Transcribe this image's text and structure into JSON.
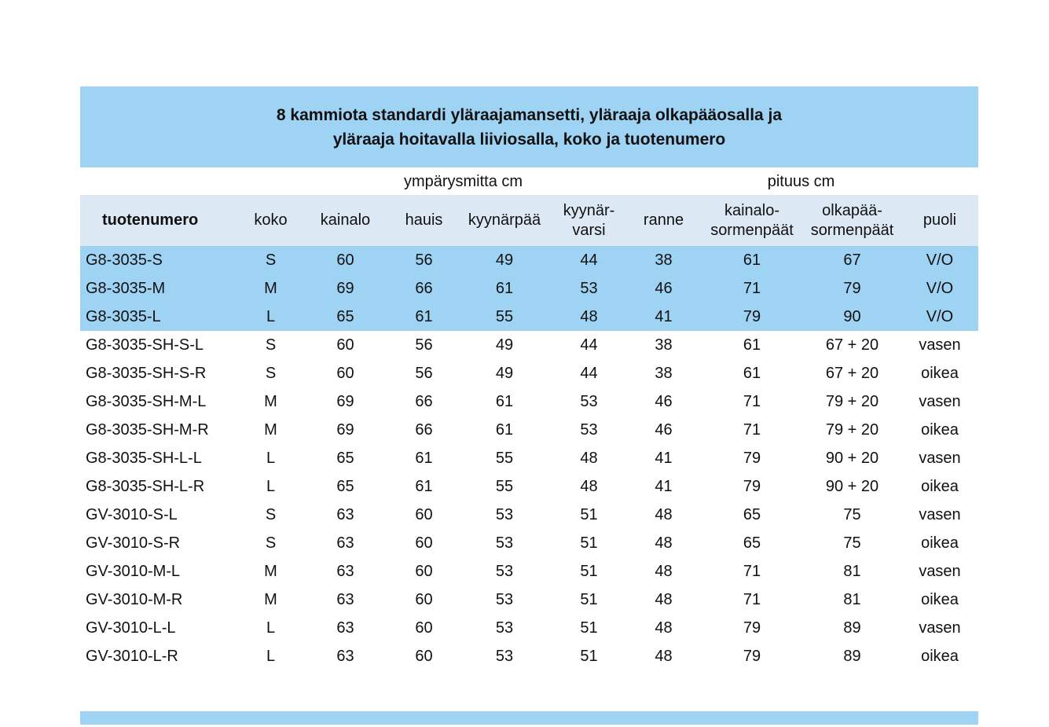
{
  "title": {
    "line1": "8 kammiota standardi yläraajamansetti, yläraaja olkapääosalla ja",
    "line2": "yläraaja hoitavalla liiviosalla, koko ja tuotenumero"
  },
  "colors": {
    "accent_blue": "#9fd3f4",
    "header_light_blue": "#dce9f4",
    "text": "#111111",
    "background": "#ffffff"
  },
  "table": {
    "group_headers": {
      "circumference": "ympärysmitta cm",
      "length": "pituus cm"
    },
    "columns": [
      "tuotenumero",
      "koko",
      "kainalo",
      "hauis",
      "kyynärpää",
      "kyynär-\nvarsi",
      "ranne",
      "kainalo-\nsormenpäät",
      "olkapää-\nsormenpäät",
      "puoli"
    ],
    "rows": [
      {
        "product": "G8-3035-S",
        "koko": "S",
        "values": [
          "60",
          "56",
          "49",
          "44",
          "38",
          "61",
          "67"
        ],
        "puoli": "V/O",
        "highlight": true
      },
      {
        "product": "G8-3035-M",
        "koko": "M",
        "values": [
          "69",
          "66",
          "61",
          "53",
          "46",
          "71",
          "79"
        ],
        "puoli": "V/O",
        "highlight": true
      },
      {
        "product": "G8-3035-L",
        "koko": "L",
        "values": [
          "65",
          "61",
          "55",
          "48",
          "41",
          "79",
          "90"
        ],
        "puoli": "V/O",
        "highlight": true
      },
      {
        "product": "G8-3035-SH-S-L",
        "koko": "S",
        "values": [
          "60",
          "56",
          "49",
          "44",
          "38",
          "61",
          "67 + 20"
        ],
        "puoli": "vasen",
        "highlight": false
      },
      {
        "product": "G8-3035-SH-S-R",
        "koko": "S",
        "values": [
          "60",
          "56",
          "49",
          "44",
          "38",
          "61",
          "67 + 20"
        ],
        "puoli": "oikea",
        "highlight": false
      },
      {
        "product": "G8-3035-SH-M-L",
        "koko": "M",
        "values": [
          "69",
          "66",
          "61",
          "53",
          "46",
          "71",
          "79 + 20"
        ],
        "puoli": "vasen",
        "highlight": false
      },
      {
        "product": "G8-3035-SH-M-R",
        "koko": "M",
        "values": [
          "69",
          "66",
          "61",
          "53",
          "46",
          "71",
          "79 + 20"
        ],
        "puoli": "oikea",
        "highlight": false
      },
      {
        "product": "G8-3035-SH-L-L",
        "koko": "L",
        "values": [
          "65",
          "61",
          "55",
          "48",
          "41",
          "79",
          "90 + 20"
        ],
        "puoli": "vasen",
        "highlight": false
      },
      {
        "product": "G8-3035-SH-L-R",
        "koko": "L",
        "values": [
          "65",
          "61",
          "55",
          "48",
          "41",
          "79",
          "90 + 20"
        ],
        "puoli": "oikea",
        "highlight": false
      },
      {
        "product": "GV-3010-S-L",
        "koko": "S",
        "values": [
          "63",
          "60",
          "53",
          "51",
          "48",
          "65",
          "75"
        ],
        "puoli": "vasen",
        "highlight": false
      },
      {
        "product": "GV-3010-S-R",
        "koko": "S",
        "values": [
          "63",
          "60",
          "53",
          "51",
          "48",
          "65",
          "75"
        ],
        "puoli": "oikea",
        "highlight": false
      },
      {
        "product": "GV-3010-M-L",
        "koko": "M",
        "values": [
          "63",
          "60",
          "53",
          "51",
          "48",
          "71",
          "81"
        ],
        "puoli": "vasen",
        "highlight": false
      },
      {
        "product": "GV-3010-M-R",
        "koko": "M",
        "values": [
          "63",
          "60",
          "53",
          "51",
          "48",
          "71",
          "81"
        ],
        "puoli": "oikea",
        "highlight": false
      },
      {
        "product": "GV-3010-L-L",
        "koko": "L",
        "values": [
          "63",
          "60",
          "53",
          "51",
          "48",
          "79",
          "89"
        ],
        "puoli": "vasen",
        "highlight": false
      },
      {
        "product": "GV-3010-L-R",
        "koko": "L",
        "values": [
          "63",
          "60",
          "53",
          "51",
          "48",
          "79",
          "89"
        ],
        "puoli": "oikea",
        "highlight": false
      }
    ]
  }
}
